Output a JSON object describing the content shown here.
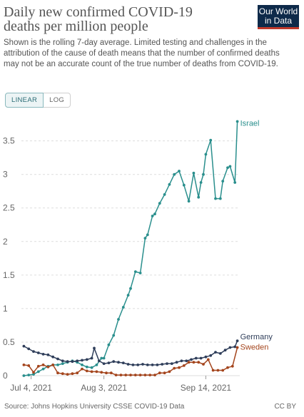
{
  "header": {
    "title_line1": "Daily new confirmed COVID-19",
    "title_line2": "deaths per million people",
    "subtitle": "Shown is the rolling 7-day average. Limited testing and challenges in the attribution of the cause of death means that the number of confirmed deaths may not be an accurate count of the true number of deaths from COVID-19."
  },
  "logo": {
    "line1": "Our World",
    "line2": "in Data"
  },
  "controls": {
    "linear_label": "LINEAR",
    "log_label": "LOG",
    "active": "linear"
  },
  "footer": {
    "source": "Source: Johns Hopkins University CSSE COVID-19 Data",
    "license": "CC BY"
  },
  "colors": {
    "israel": "#2a8f8d",
    "germany": "#2f3e5a",
    "sweden": "#a4451d",
    "grid": "#dddddd",
    "axis_text": "#666666"
  },
  "chart_data": {
    "type": "line",
    "title": "Daily new confirmed COVID-19 deaths per million people",
    "x_start": "2021-06-30",
    "x_end": "2021-09-28",
    "xlim": [
      "2021-06-30",
      "2021-09-28"
    ],
    "ylim": [
      0,
      3.9
    ],
    "y_ticks": [
      0,
      0.5,
      1,
      1.5,
      2,
      2.5,
      3,
      3.5
    ],
    "y_tick_labels": [
      "0",
      "0.5",
      "1",
      "1.5",
      "2",
      "2.5",
      "3",
      "3.5"
    ],
    "x_tick_labels": [
      "Jul 4, 2021",
      "Aug 3, 2021",
      "Sep 14, 2021"
    ],
    "x_tick_dates": [
      "2021-07-04",
      "2021-08-03",
      "2021-09-14"
    ],
    "grid": "horizontal dashed",
    "legend": "labels at line ends (right)",
    "series": [
      {
        "name": "Israel",
        "color": "#2a8f8d",
        "x": [
          "2021-07-01",
          "2021-07-03",
          "2021-07-05",
          "2021-07-07",
          "2021-07-09",
          "2021-07-11",
          "2021-07-13",
          "2021-07-15",
          "2021-07-17",
          "2021-07-19",
          "2021-07-21",
          "2021-07-23",
          "2021-07-25",
          "2021-07-27",
          "2021-07-29",
          "2021-07-31",
          "2021-08-02",
          "2021-08-03",
          "2021-08-05",
          "2021-08-07",
          "2021-08-09",
          "2021-08-11",
          "2021-08-13",
          "2021-08-14",
          "2021-08-16",
          "2021-08-18",
          "2021-08-20",
          "2021-08-21",
          "2021-08-23",
          "2021-08-24",
          "2021-08-26",
          "2021-08-28",
          "2021-08-30",
          "2021-09-01",
          "2021-09-03",
          "2021-09-05",
          "2021-09-07",
          "2021-09-09",
          "2021-09-11",
          "2021-09-12",
          "2021-09-13",
          "2021-09-14",
          "2021-09-16",
          "2021-09-18",
          "2021-09-20",
          "2021-09-21",
          "2021-09-23",
          "2021-09-24",
          "2021-09-26",
          "2021-09-27"
        ],
        "y": [
          0,
          0.01,
          0.02,
          0.06,
          0.1,
          0.14,
          0.16,
          0.16,
          0.18,
          0.2,
          0.22,
          0.2,
          0.16,
          0.13,
          0.12,
          0.16,
          0.26,
          0.26,
          0.46,
          0.6,
          0.84,
          1.02,
          1.2,
          1.3,
          1.55,
          1.53,
          2.05,
          2.1,
          2.38,
          2.41,
          2.57,
          2.7,
          2.85,
          3.0,
          3.05,
          2.84,
          2.6,
          3.02,
          2.66,
          2.88,
          3.0,
          3.3,
          3.51,
          2.64,
          2.64,
          2.9,
          3.1,
          3.12,
          2.88,
          3.79
        ]
      },
      {
        "name": "Germany",
        "color": "#2f3e5a",
        "x": [
          "2021-07-01",
          "2021-07-03",
          "2021-07-05",
          "2021-07-07",
          "2021-07-09",
          "2021-07-11",
          "2021-07-13",
          "2021-07-15",
          "2021-07-17",
          "2021-07-19",
          "2021-07-21",
          "2021-07-23",
          "2021-07-25",
          "2021-07-27",
          "2021-07-29",
          "2021-07-30",
          "2021-08-01",
          "2021-08-03",
          "2021-08-05",
          "2021-08-07",
          "2021-08-09",
          "2021-08-11",
          "2021-08-13",
          "2021-08-15",
          "2021-08-17",
          "2021-08-19",
          "2021-08-21",
          "2021-08-23",
          "2021-08-25",
          "2021-08-27",
          "2021-08-29",
          "2021-08-31",
          "2021-09-02",
          "2021-09-04",
          "2021-09-06",
          "2021-09-08",
          "2021-09-10",
          "2021-09-12",
          "2021-09-14",
          "2021-09-16",
          "2021-09-18",
          "2021-09-20",
          "2021-09-22",
          "2021-09-24",
          "2021-09-26",
          "2021-09-27"
        ],
        "y": [
          0.44,
          0.4,
          0.36,
          0.34,
          0.32,
          0.31,
          0.28,
          0.25,
          0.22,
          0.21,
          0.21,
          0.22,
          0.23,
          0.24,
          0.26,
          0.41,
          0.22,
          0.18,
          0.19,
          0.21,
          0.2,
          0.19,
          0.17,
          0.16,
          0.16,
          0.17,
          0.16,
          0.16,
          0.16,
          0.17,
          0.18,
          0.18,
          0.2,
          0.22,
          0.22,
          0.24,
          0.26,
          0.26,
          0.28,
          0.3,
          0.35,
          0.33,
          0.38,
          0.42,
          0.43,
          0.52
        ]
      },
      {
        "name": "Sweden",
        "color": "#a4451d",
        "x": [
          "2021-07-01",
          "2021-07-03",
          "2021-07-05",
          "2021-07-07",
          "2021-07-09",
          "2021-07-11",
          "2021-07-13",
          "2021-07-15",
          "2021-07-17",
          "2021-07-19",
          "2021-07-21",
          "2021-07-23",
          "2021-07-25",
          "2021-07-27",
          "2021-07-29",
          "2021-07-31",
          "2021-08-02",
          "2021-08-04",
          "2021-08-06",
          "2021-08-08",
          "2021-08-10",
          "2021-08-12",
          "2021-08-14",
          "2021-08-16",
          "2021-08-18",
          "2021-08-20",
          "2021-08-22",
          "2021-08-24",
          "2021-08-26",
          "2021-08-28",
          "2021-08-30",
          "2021-09-01",
          "2021-09-03",
          "2021-09-05",
          "2021-09-07",
          "2021-09-09",
          "2021-09-11",
          "2021-09-13",
          "2021-09-15",
          "2021-09-17",
          "2021-09-19",
          "2021-09-21",
          "2021-09-23",
          "2021-09-25",
          "2021-09-27"
        ],
        "y": [
          0.16,
          0.15,
          0.05,
          0.14,
          0.16,
          0.13,
          0.16,
          0.04,
          0.03,
          0.02,
          0.03,
          0.04,
          0.1,
          0.07,
          0.06,
          0.06,
          0.05,
          0.04,
          0.04,
          0.01,
          0.01,
          0.01,
          0.01,
          0.01,
          0.01,
          0.01,
          0.01,
          0.01,
          0.04,
          0.04,
          0.06,
          0.11,
          0.12,
          0.15,
          0.2,
          0.2,
          0.2,
          0.17,
          0.24,
          0.08,
          0.08,
          0.08,
          0.12,
          0.14,
          0.42
        ]
      }
    ]
  }
}
